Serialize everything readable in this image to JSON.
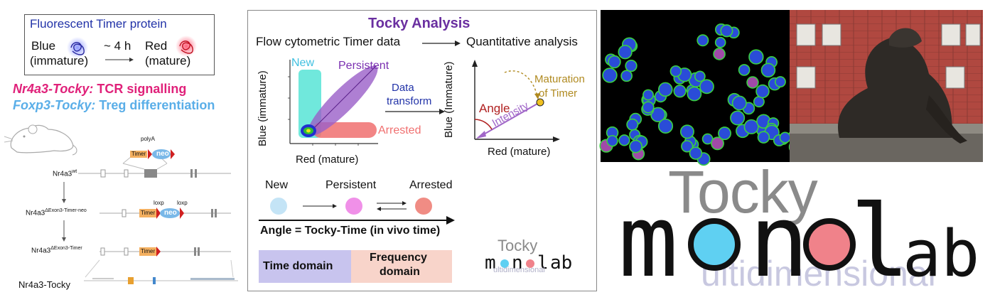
{
  "left": {
    "box_title": "Fluorescent Timer protein",
    "blue_name": "Blue",
    "blue_state": "(immature)",
    "delay": "~ 4 h",
    "red_name": "Red",
    "red_state": "(mature)",
    "line1_gene": "Nr4a3-Tocky:",
    "line1_text": "TCR signalling",
    "line2_gene": "Foxp3-Tocky:",
    "line2_text": "Treg differentiation",
    "construct": {
      "polyA": "polyA",
      "timer": "Timer",
      "neo": "neo",
      "loxp": "loxp",
      "wt_base": "Nr4a3",
      "wt_sup": "wt",
      "mid_base": "Nr4a3",
      "mid_sup": "ΔExon3-Timer-neo",
      "low_base": "Nr4a3",
      "low_sup": "ΔExon3-Timer",
      "track_label": "Nr4a3-Tocky"
    },
    "colors": {
      "magenta": "#e0217a",
      "light_blue": "#5aaee8",
      "dark_blue": "#2233a8"
    }
  },
  "center": {
    "title": "Tocky Analysis",
    "flow_label": "Flow cytometric Timer data",
    "quant_label": "Quantitative analysis",
    "plot": {
      "new": "New",
      "persistent": "Persistent",
      "arrested": "Arrested",
      "x_axis": "Red (mature)",
      "y_axis": "Blue (immature)"
    },
    "transform_1": "Data",
    "transform_2": "transform",
    "polar": {
      "angle": "Angle",
      "intensity": "Intensity",
      "maturation_1": "Maturation",
      "maturation_2": "of Timer",
      "x_axis": "Red (mature)",
      "y_axis": "Blue (Immature)"
    },
    "locus": {
      "new": "New",
      "persistent": "Persistent",
      "arrested": "Arrested"
    },
    "equation": "Angle = Tocky-Time (in vivo time)",
    "time_domain": "Time domain",
    "freq_1": "Frequency",
    "freq_2": "domain",
    "small_logo": {
      "top": "Tocky",
      "mono": "monolab",
      "multi": "ultidimensional"
    },
    "colors": {
      "title": "#6a2fa0",
      "new": "#40e0d0",
      "persistent": "#9a5fc8",
      "arrested": "#f07070",
      "angle": "#b02020",
      "maturation": "#b08a20"
    }
  },
  "right": {
    "logo_top": "Tocky",
    "logo_m": "m",
    "logo_n": "n",
    "logo_l": "l",
    "logo_ab": "ab",
    "logo_multi": "ultidimensional",
    "colors": {
      "blue_dot": "#5fd0f2",
      "pink_dot": "#f0828a",
      "grey": "#8a8a8a",
      "lavender": "#c8c8e0"
    }
  }
}
